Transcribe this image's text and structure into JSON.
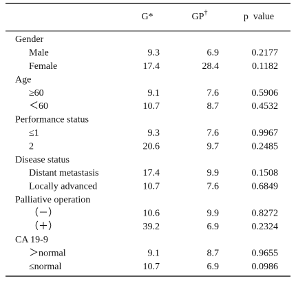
{
  "table": {
    "header": [
      "G*",
      {
        "text": "GP",
        "sup": "†"
      },
      "p  value"
    ],
    "rows": [
      {
        "label": "Gender"
      },
      {
        "label": "Male",
        "values": [
          "9.3",
          "6.9",
          "0.2177"
        ]
      },
      {
        "label": "Female",
        "values": [
          "17.4",
          "28.4",
          "0.1182"
        ]
      },
      {
        "label": "Age"
      },
      {
        "label": "≥60",
        "values": [
          "9.1",
          "7.6",
          "0.5906"
        ]
      },
      {
        "label": "＜60",
        "values": [
          "10.7",
          "8.7",
          "0.4532"
        ]
      },
      {
        "label": "Performance status"
      },
      {
        "label": "≤1",
        "values": [
          "9.3",
          "7.6",
          "0.9967"
        ]
      },
      {
        "label": "2",
        "values": [
          "20.6",
          "9.7",
          "0.2485"
        ]
      },
      {
        "label": "Disease status"
      },
      {
        "label": "Distant metastasis",
        "values": [
          "17.4",
          "9.9",
          "0.1508"
        ]
      },
      {
        "label": "Locally advanced",
        "values": [
          "10.7",
          "7.6",
          "0.6849"
        ]
      },
      {
        "label": "Palliative operation"
      },
      {
        "label": "（－）",
        "values": [
          "10.6",
          "9.9",
          "0.8272"
        ]
      },
      {
        "label": "（＋）",
        "values": [
          "39.2",
          "6.9",
          "0.2324"
        ]
      },
      {
        "label": "CA 19-9"
      },
      {
        "label": "＞normal",
        "values": [
          "9.1",
          "8.7",
          "0.9655"
        ]
      },
      {
        "label": "≤normal",
        "values": [
          "10.7",
          "6.9",
          "0.0986"
        ]
      }
    ]
  }
}
